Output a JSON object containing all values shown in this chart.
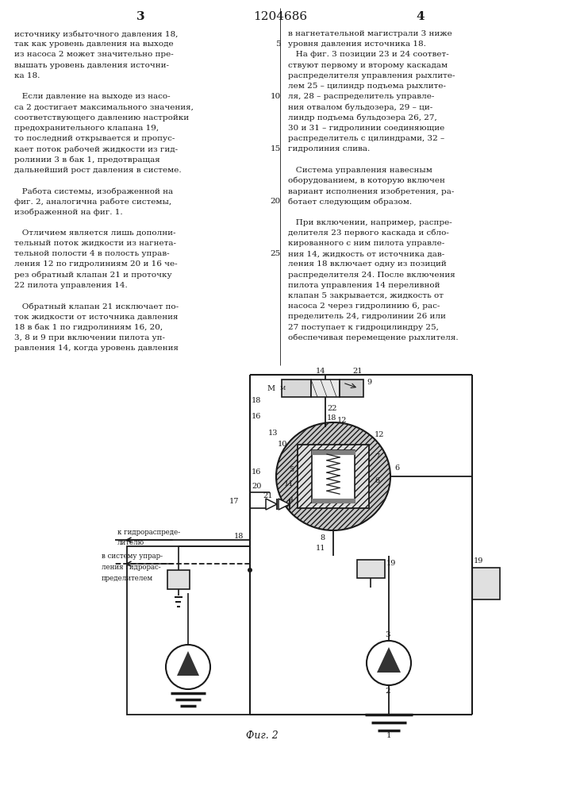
{
  "page_width": 7.07,
  "page_height": 10.0,
  "bg_color": "#ffffff",
  "text_color": "#1a1a1a",
  "line_color": "#1a1a1a",
  "page_num_left": "3",
  "patent_num": "1204686",
  "page_num_right": "4",
  "col1_text": [
    "источнику избыточного давления 18,",
    "так как уровень давления на выходе",
    "из насоса 2 может значительно пре-",
    "вышать уровень давления источни-",
    "ка 18.",
    "",
    "   Если давление на выходе из насо-",
    "са 2 достигает максимального значения,",
    "соответствующего давлению настройки",
    "предохранительного клапана 19,",
    "то последний открывается и пропус-",
    "кает поток рабочей жидкости из гид-",
    "ролинии 3 в бак 1, предотвращая",
    "дальнейший рост давления в системе.",
    "",
    "   Работа системы, изображенной на",
    "фиг. 2, аналогична работе системы,",
    "изображенной на фиг. 1.",
    "",
    "   Отличием является лишь дополни-",
    "тельный поток жидкости из нагнета-",
    "тельной полости 4 в полость управ-",
    "ления 12 по гидролиниям 20 и 16 че-",
    "рез обратный клапан 21 и проточку",
    "22 пилота управления 14.",
    "",
    "   Обратный клапан 21 исключает по-",
    "ток жидкости от источника давления",
    "18 в бак 1 по гидролиниям 16, 20,",
    "3, 8 и 9 при включении пилота уп-",
    "равления 14, когда уровень давления"
  ],
  "col2_text": [
    "в нагнетательной магистрали 3 ниже",
    "уровня давления источника 18.",
    "   На фиг. 3 позиции 23 и 24 соответ-",
    "ствуют первому и второму каскадам",
    "распределителя управления рыхлите-",
    "лем 25 – цилиндр подъема рыхлите-",
    "ля, 28 – распределитель управле-",
    "ния отвалом бульдозера, 29 – ци-",
    "линдр подъема бульдозера 26, 27,",
    "30 и 31 – гидролинии соединяющие",
    "распределитель с цилиндрами, 32 –",
    "гидролиния слива.",
    "",
    "   Система управления навесным",
    "оборудованием, в которую включен",
    "вариант исполнения изобретения, ра-",
    "ботает следующим образом.",
    "",
    "   При включении, например, распре-",
    "делителя 23 первого каскада и сбло-",
    "кированного с ним пилота управле-",
    "ния 14, жидкость от источника дав-",
    "ления 18 включает одну из позиций",
    "распределителя 24. После включения",
    "пилота управления 14 переливной",
    "клапан 5 закрывается, жидкость от",
    "насоса 2 через гидролинию 6, рас-",
    "пределитель 24, гидролинии 26 или",
    "27 поступает к гидроцилиндру 25,",
    "обеспечивая перемещение рыхлителя."
  ],
  "fig_label": "Фиг. 2",
  "line_numbers": {
    "5_label": "5",
    "col2_linenum_prefix": "5 "
  }
}
